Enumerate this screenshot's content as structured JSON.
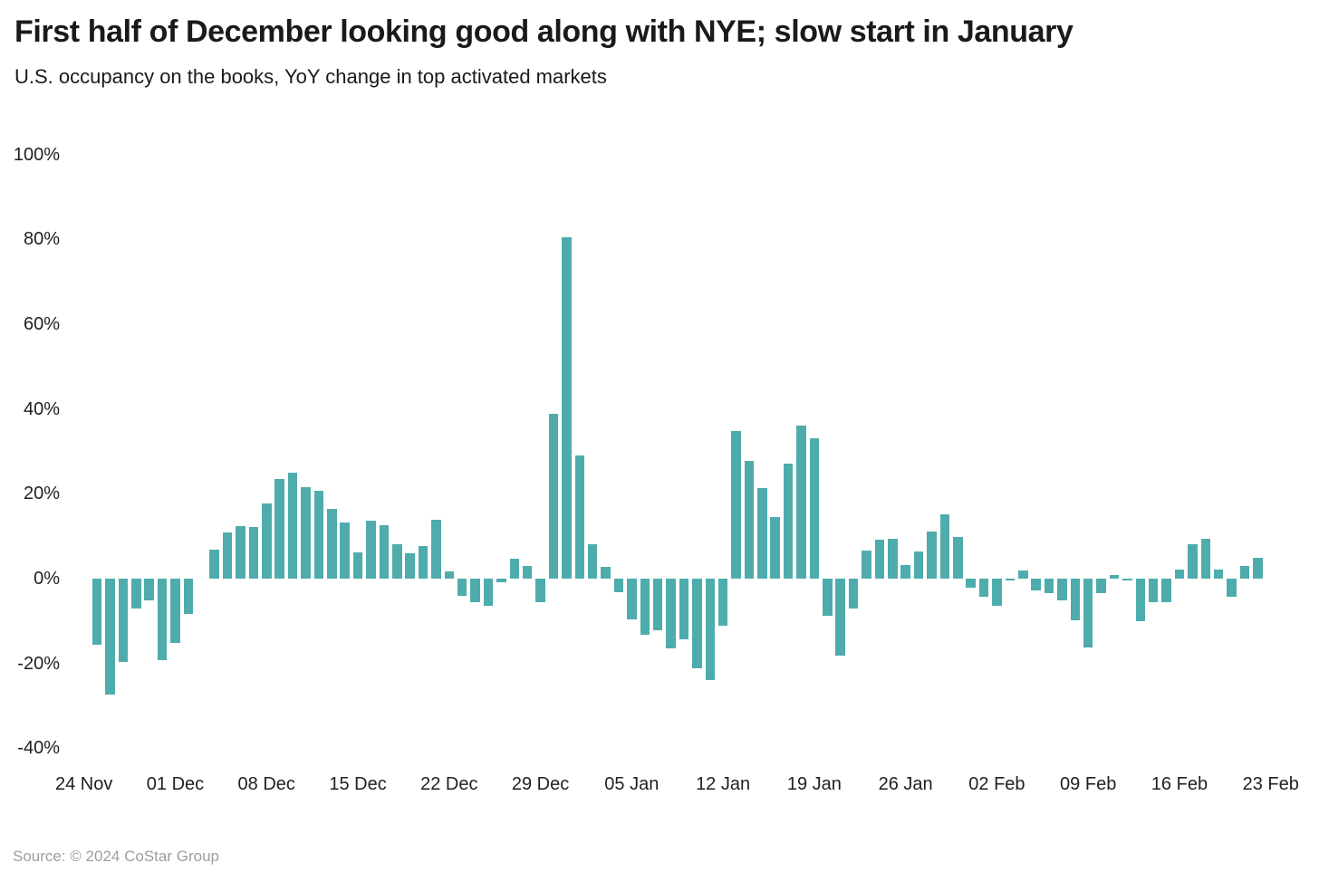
{
  "page": {
    "source": "Source: © 2024 CoStar Group"
  },
  "colors": {
    "background": "#ffffff",
    "bar": "#4FACAC",
    "title_text": "#1a1a1a",
    "axis_text": "#1f1f1f",
    "source_text": "#9e9e9e"
  },
  "chart_data": {
    "type": "bar",
    "title": "First half of December looking good along with NYE; slow start in January",
    "subtitle": "U.S. occupancy on the books, YoY change in top activated markets",
    "unit": "%",
    "grid": false,
    "legend": false,
    "ylim": [
      -40,
      100
    ],
    "y_ticks": [
      100,
      80,
      60,
      40,
      20,
      0,
      -20,
      -40
    ],
    "y_tick_labels": [
      "100%",
      "80%",
      "60%",
      "40%",
      "20%",
      "0%",
      "-20%",
      "-40%"
    ],
    "x_tick_labels": [
      "24 Nov",
      "01 Dec",
      "08 Dec",
      "15 Dec",
      "22 Dec",
      "29 Dec",
      "05 Jan",
      "12 Jan",
      "19 Jan",
      "26 Jan",
      "02 Feb",
      "09 Feb",
      "16 Feb",
      "23 Feb"
    ],
    "x_tick_day_index": [
      0,
      7,
      14,
      21,
      28,
      35,
      42,
      49,
      56,
      63,
      70,
      77,
      84,
      91
    ],
    "x": [
      "24 Nov",
      "25 Nov",
      "26 Nov",
      "27 Nov",
      "28 Nov",
      "29 Nov",
      "30 Nov",
      "01 Dec",
      "02 Dec",
      "03 Dec",
      "04 Dec",
      "05 Dec",
      "06 Dec",
      "07 Dec",
      "08 Dec",
      "09 Dec",
      "10 Dec",
      "11 Dec",
      "12 Dec",
      "13 Dec",
      "14 Dec",
      "15 Dec",
      "16 Dec",
      "17 Dec",
      "18 Dec",
      "19 Dec",
      "20 Dec",
      "21 Dec",
      "22 Dec",
      "23 Dec",
      "24 Dec",
      "25 Dec",
      "26 Dec",
      "27 Dec",
      "28 Dec",
      "29 Dec",
      "30 Dec",
      "31 Dec",
      "01 Jan",
      "02 Jan",
      "03 Jan",
      "04 Jan",
      "05 Jan",
      "06 Jan",
      "07 Jan",
      "08 Jan",
      "09 Jan",
      "10 Jan",
      "11 Jan",
      "12 Jan",
      "13 Jan",
      "14 Jan",
      "15 Jan",
      "16 Jan",
      "17 Jan",
      "18 Jan",
      "19 Jan",
      "20 Jan",
      "21 Jan",
      "22 Jan",
      "23 Jan",
      "24 Jan",
      "25 Jan",
      "26 Jan",
      "27 Jan",
      "28 Jan",
      "29 Jan",
      "30 Jan",
      "31 Jan",
      "01 Feb",
      "02 Feb",
      "03 Feb",
      "04 Feb",
      "05 Feb",
      "06 Feb",
      "07 Feb",
      "08 Feb",
      "09 Feb",
      "10 Feb",
      "11 Feb",
      "12 Feb",
      "13 Feb",
      "14 Feb",
      "15 Feb",
      "16 Feb",
      "17 Feb",
      "18 Feb",
      "19 Feb",
      "20 Feb",
      "21 Feb",
      "22 Feb",
      "23 Feb"
    ],
    "values": [
      null,
      -15.5,
      -27.3,
      -19.7,
      -7.1,
      -5.2,
      -19.3,
      -15.1,
      -8.4,
      null,
      6.9,
      10.9,
      12.4,
      12.2,
      17.7,
      23.5,
      25.0,
      21.6,
      20.7,
      16.4,
      13.3,
      6.3,
      13.7,
      12.5,
      8.2,
      6.0,
      7.8,
      13.9,
      1.7,
      -4.1,
      -5.6,
      -6.4,
      -0.8,
      4.7,
      2.9,
      -5.6,
      38.9,
      80.4,
      29.0,
      8.2,
      2.7,
      -3.1,
      -9.5,
      -13.2,
      -12.2,
      -16.4,
      -14.2,
      -21.2,
      -24.0,
      -11.1,
      34.8,
      27.7,
      21.4,
      14.6,
      27.2,
      36.1,
      33.2,
      -8.7,
      -18.1,
      -7.0,
      6.6,
      9.2,
      9.3,
      3.3,
      6.4,
      11.2,
      15.2,
      9.8,
      -2.1,
      -4.2,
      -6.4,
      -0.5,
      1.9,
      -2.7,
      -3.5,
      -5.2,
      -9.8,
      -16.2,
      -3.5,
      0.8,
      -0.5,
      -10.0,
      -5.6,
      -5.5,
      2.1,
      8.1,
      9.5,
      2.1,
      -4.3,
      2.9,
      4.9,
      null
    ]
  }
}
